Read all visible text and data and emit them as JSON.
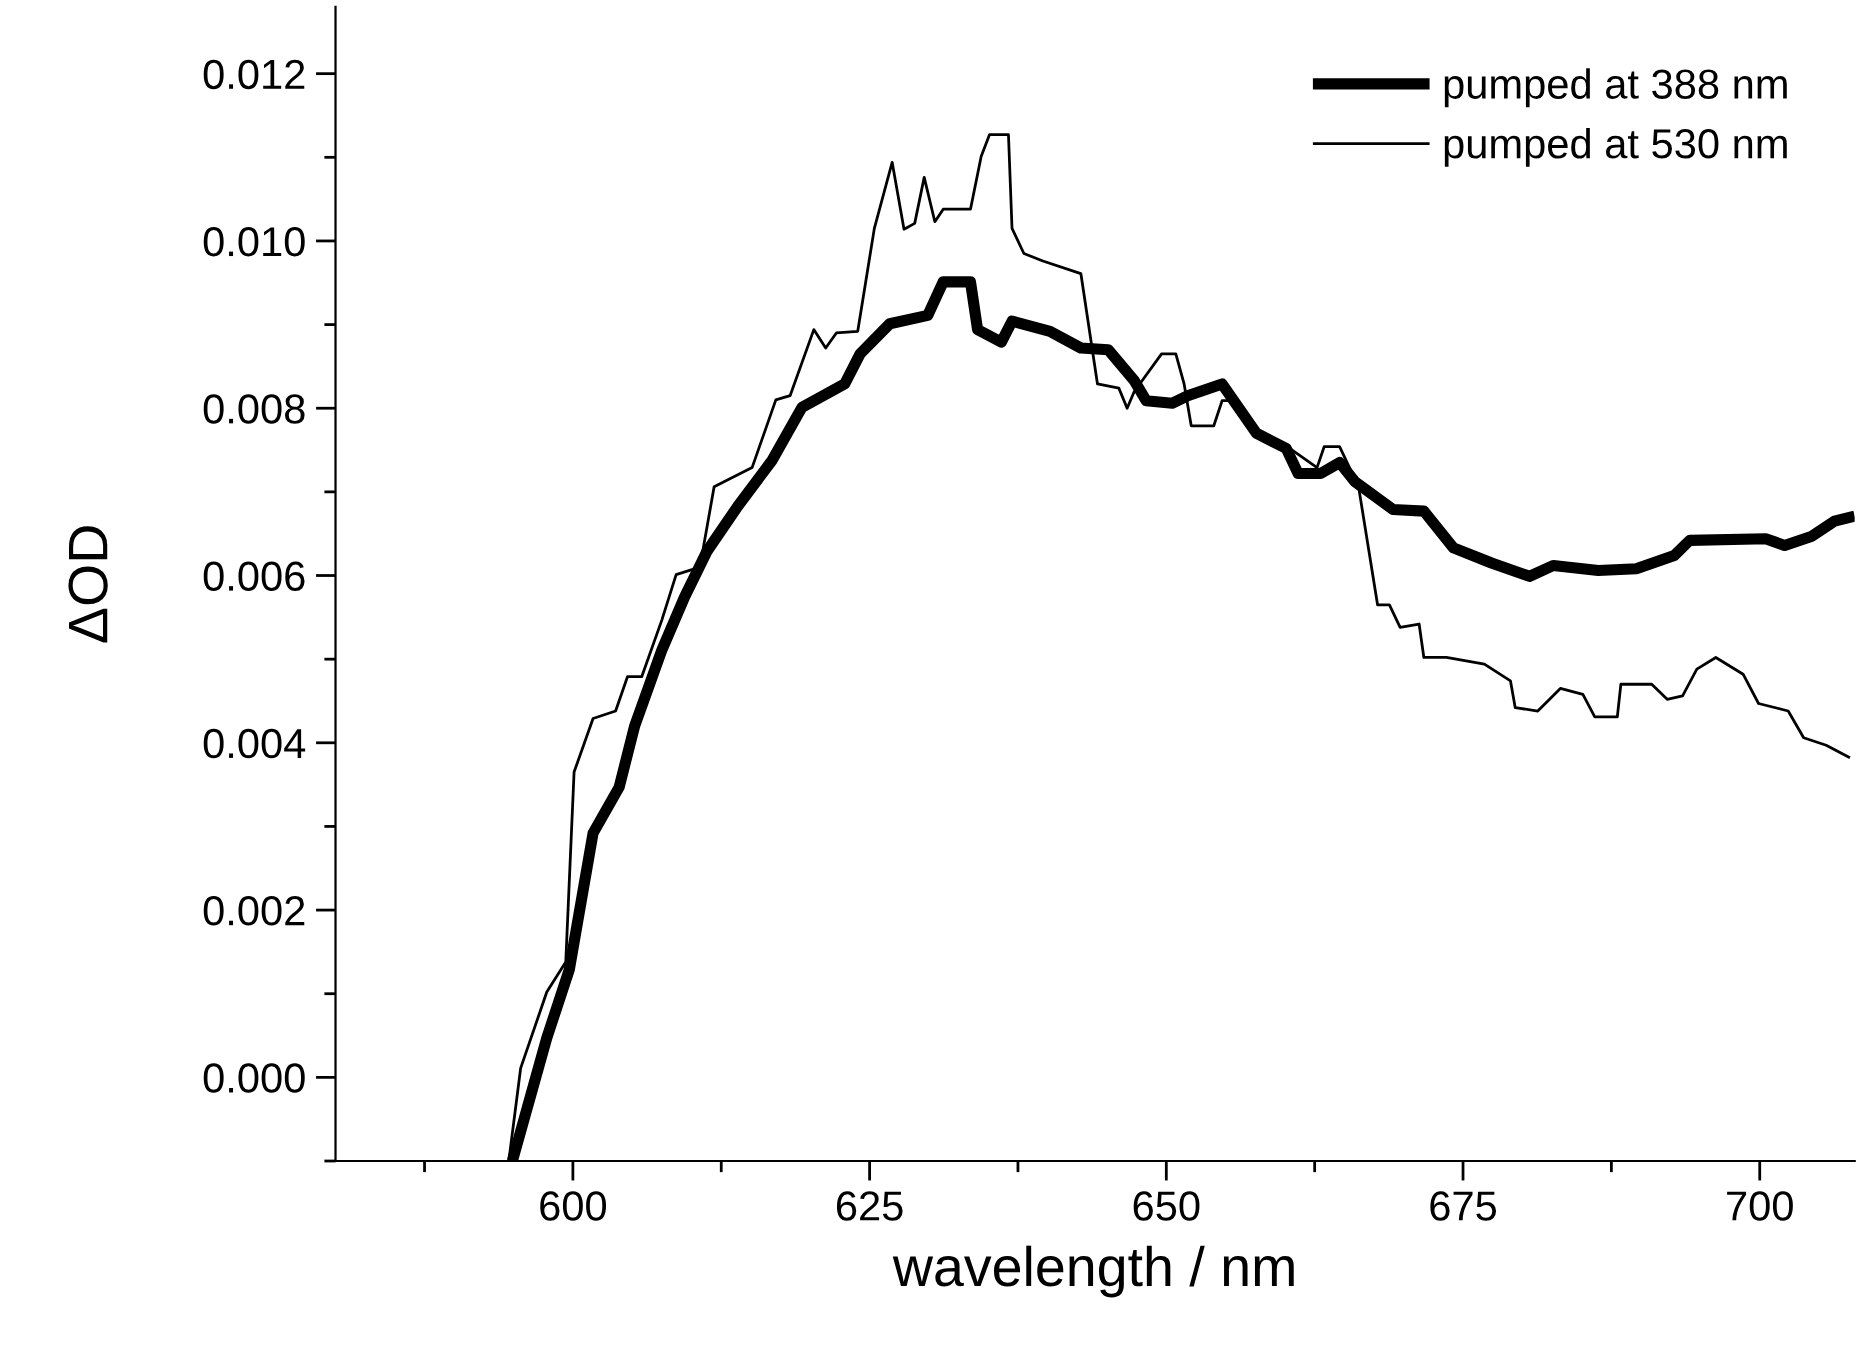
{
  "chart_data": {
    "type": "line",
    "xlabel": "wavelength / nm",
    "ylabel": "ΔOD",
    "xlim": [
      580,
      708
    ],
    "xticks": [
      600,
      625,
      650,
      675,
      700
    ],
    "ylim": [
      -0.001,
      0.0128
    ],
    "yticks": [
      {
        "value": 0.0,
        "label": "0.000"
      },
      {
        "value": 0.002,
        "label": "0.002"
      },
      {
        "value": 0.004,
        "label": "0.004"
      },
      {
        "value": 0.006,
        "label": "0.006"
      },
      {
        "value": 0.008,
        "label": "0.008"
      },
      {
        "value": 0.01,
        "label": "0.010"
      },
      {
        "value": 0.012,
        "label": "0.012"
      }
    ],
    "legend": "top right",
    "grid": false,
    "marker": "none",
    "line_style": "solid",
    "series": [
      {
        "name": "pumped at 388 nm",
        "color": "#000000",
        "x": [
          594.9,
          597.8,
          599.7,
          601.7,
          603.9,
          605.2,
          607.5,
          609.4,
          611.3,
          613.9,
          616.8,
          619.3,
          622.9,
          624.2,
          626.7,
          629.9,
          631.2,
          633.5,
          634.1,
          636.1,
          637.0,
          640.2,
          642.8,
          645.1,
          647.3,
          648.3,
          650.5,
          651.8,
          654.7,
          657.6,
          660.1,
          661.1,
          663.0,
          664.6,
          665.9,
          669.1,
          671.7,
          674.2,
          677.4,
          680.6,
          682.6,
          686.4,
          689.6,
          692.8,
          694.1,
          700.5,
          702.1,
          704.4,
          706.3,
          708.0
        ],
        "values": [
          -0.001,
          0.00047,
          0.00129,
          0.00292,
          0.00347,
          0.0042,
          0.00511,
          0.00574,
          0.00629,
          0.00683,
          0.00738,
          0.00801,
          0.00829,
          0.00865,
          0.00901,
          0.00911,
          0.00951,
          0.00951,
          0.00894,
          0.00879,
          0.00904,
          0.00892,
          0.00872,
          0.0087,
          0.00833,
          0.00809,
          0.00806,
          0.00815,
          0.00829,
          0.0077,
          0.00752,
          0.00722,
          0.00722,
          0.00735,
          0.00712,
          0.00679,
          0.00677,
          0.00633,
          0.00615,
          0.00599,
          0.00612,
          0.00606,
          0.00608,
          0.00624,
          0.00642,
          0.00644,
          0.00636,
          0.00647,
          0.00665,
          0.00671
        ]
      },
      {
        "name": "pumped at 530 nm",
        "color": "#000000",
        "x": [
          594.6,
          595.6,
          597.8,
          599.4,
          600.1,
          601.7,
          603.6,
          604.6,
          605.8,
          607.5,
          608.7,
          610.7,
          611.9,
          615.1,
          617.1,
          618.3,
          620.3,
          621.3,
          622.2,
          624.0,
          625.4,
          626.9,
          627.9,
          628.8,
          629.6,
          630.5,
          631.2,
          633.5,
          634.4,
          635.1,
          636.7,
          637.0,
          638.0,
          639.6,
          642.8,
          644.2,
          646.0,
          646.7,
          647.3,
          649.6,
          650.8,
          651.5,
          652.1,
          654.0,
          654.7,
          655.6,
          657.2,
          660.4,
          662.7,
          663.3,
          664.6,
          666.2,
          667.8,
          668.8,
          669.7,
          671.3,
          671.7,
          673.6,
          676.8,
          679.0,
          679.4,
          681.3,
          683.2,
          685.1,
          686.1,
          688.0,
          688.3,
          690.9,
          692.2,
          693.5,
          694.7,
          696.3,
          698.6,
          699.9,
          702.4,
          703.7,
          705.6,
          707.6
        ],
        "values": [
          -0.001,
          0.00011,
          0.00102,
          0.00138,
          0.00365,
          0.00429,
          0.00438,
          0.00479,
          0.00479,
          0.00547,
          0.00601,
          0.0061,
          0.00706,
          0.00729,
          0.0081,
          0.00815,
          0.00894,
          0.00872,
          0.0089,
          0.00892,
          0.01015,
          0.01094,
          0.01014,
          0.01021,
          0.01076,
          0.01023,
          0.01038,
          0.01038,
          0.01101,
          0.01127,
          0.01127,
          0.01015,
          0.00985,
          0.00976,
          0.00961,
          0.00829,
          0.00824,
          0.008,
          0.0082,
          0.00865,
          0.00865,
          0.00829,
          0.00779,
          0.00779,
          0.00809,
          0.00809,
          0.00774,
          0.00752,
          0.00729,
          0.00754,
          0.00754,
          0.00706,
          0.00565,
          0.00565,
          0.00538,
          0.00542,
          0.00502,
          0.00502,
          0.00494,
          0.00474,
          0.00442,
          0.00438,
          0.00465,
          0.00458,
          0.00431,
          0.00431,
          0.0047,
          0.0047,
          0.00452,
          0.00456,
          0.00488,
          0.00502,
          0.00482,
          0.00447,
          0.00438,
          0.00406,
          0.00397,
          0.00382
        ]
      }
    ]
  }
}
